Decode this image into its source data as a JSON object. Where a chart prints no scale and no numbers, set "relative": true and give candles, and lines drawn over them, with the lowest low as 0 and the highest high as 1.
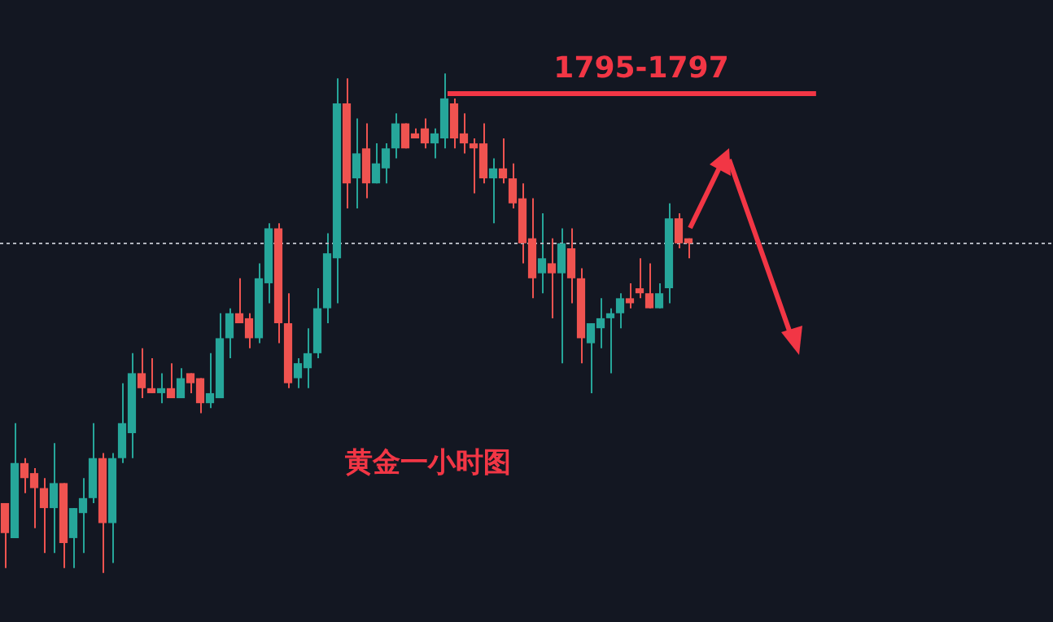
{
  "chart_data": {
    "type": "candlestick",
    "relative": true,
    "categories": [
      null,
      null,
      null,
      null,
      null,
      null,
      null,
      null,
      null,
      null,
      null,
      null,
      null,
      null,
      null,
      null,
      null,
      null,
      null,
      null,
      null,
      null,
      null,
      null,
      null,
      null,
      null,
      null,
      null,
      null,
      null,
      null,
      null,
      null,
      null,
      null,
      null,
      null,
      null,
      null,
      null,
      null,
      null,
      null,
      null,
      null,
      null,
      null,
      null,
      null,
      null,
      null,
      null,
      null,
      null,
      null,
      null,
      null,
      null,
      null,
      null,
      null,
      null,
      null,
      null,
      null,
      null,
      null,
      null,
      null,
      null
    ],
    "ohlc": [
      [
        0.14,
        0.14,
        0.01,
        0.08
      ],
      [
        0.07,
        0.3,
        0.07,
        0.22
      ],
      [
        0.22,
        0.23,
        0.16,
        0.19
      ],
      [
        0.2,
        0.21,
        0.09,
        0.17
      ],
      [
        0.17,
        0.19,
        0.04,
        0.13
      ],
      [
        0.13,
        0.26,
        0.04,
        0.18
      ],
      [
        0.18,
        0.18,
        0.01,
        0.06
      ],
      [
        0.07,
        0.13,
        0.01,
        0.13
      ],
      [
        0.12,
        0.19,
        0.04,
        0.15
      ],
      [
        0.15,
        0.3,
        0.14,
        0.23
      ],
      [
        0.23,
        0.24,
        0,
        0.1
      ],
      [
        0.1,
        0.24,
        0.02,
        0.23
      ],
      [
        0.23,
        0.38,
        0.22,
        0.3
      ],
      [
        0.28,
        0.44,
        0.23,
        0.4
      ],
      [
        0.4,
        0.45,
        0.35,
        0.37
      ],
      [
        0.37,
        0.43,
        0.36,
        0.36
      ],
      [
        0.36,
        0.4,
        0.34,
        0.37
      ],
      [
        0.37,
        0.42,
        0.35,
        0.35
      ],
      [
        0.35,
        0.41,
        0.35,
        0.39
      ],
      [
        0.4,
        0.4,
        0.36,
        0.38
      ],
      [
        0.39,
        0.39,
        0.32,
        0.34
      ],
      [
        0.34,
        0.44,
        0.33,
        0.36
      ],
      [
        0.35,
        0.52,
        0.35,
        0.47
      ],
      [
        0.47,
        0.53,
        0.43,
        0.52
      ],
      [
        0.52,
        0.59,
        0.5,
        0.5
      ],
      [
        0.51,
        0.52,
        0.45,
        0.47
      ],
      [
        0.47,
        0.62,
        0.46,
        0.59
      ],
      [
        0.58,
        0.7,
        0.54,
        0.69
      ],
      [
        0.69,
        0.7,
        0.46,
        0.5
      ],
      [
        0.5,
        0.56,
        0.37,
        0.38
      ],
      [
        0.39,
        0.43,
        0.37,
        0.42
      ],
      [
        0.41,
        0.49,
        0.37,
        0.44
      ],
      [
        0.44,
        0.57,
        0.43,
        0.53
      ],
      [
        0.53,
        0.68,
        0.5,
        0.64
      ],
      [
        0.63,
        0.99,
        0.54,
        0.94
      ],
      [
        0.94,
        0.99,
        0.73,
        0.78
      ],
      [
        0.79,
        0.91,
        0.73,
        0.84
      ],
      [
        0.85,
        0.9,
        0.75,
        0.78
      ],
      [
        0.78,
        0.86,
        0.78,
        0.82
      ],
      [
        0.81,
        0.86,
        0.78,
        0.85
      ],
      [
        0.85,
        0.92,
        0.83,
        0.9
      ],
      [
        0.9,
        0.9,
        0.85,
        0.85
      ],
      [
        0.88,
        0.89,
        0.87,
        0.87
      ],
      [
        0.89,
        0.91,
        0.85,
        0.86
      ],
      [
        0.86,
        0.89,
        0.83,
        0.88
      ],
      [
        0.87,
        1,
        0.85,
        0.95
      ],
      [
        0.94,
        0.95,
        0.85,
        0.87
      ],
      [
        0.88,
        0.92,
        0.84,
        0.86
      ],
      [
        0.86,
        0.87,
        0.76,
        0.85
      ],
      [
        0.86,
        0.9,
        0.78,
        0.79
      ],
      [
        0.79,
        0.83,
        0.7,
        0.81
      ],
      [
        0.81,
        0.87,
        0.78,
        0.79
      ],
      [
        0.79,
        0.82,
        0.73,
        0.74
      ],
      [
        0.75,
        0.78,
        0.62,
        0.66
      ],
      [
        0.67,
        0.75,
        0.55,
        0.59
      ],
      [
        0.6,
        0.72,
        0.56,
        0.63
      ],
      [
        0.62,
        0.67,
        0.51,
        0.6
      ],
      [
        0.6,
        0.69,
        0.42,
        0.66
      ],
      [
        0.65,
        0.69,
        0.54,
        0.59
      ],
      [
        0.59,
        0.61,
        0.42,
        0.47
      ],
      [
        0.46,
        0.5,
        0.36,
        0.5
      ],
      [
        0.49,
        0.55,
        0.45,
        0.51
      ],
      [
        0.51,
        0.53,
        0.4,
        0.52
      ],
      [
        0.52,
        0.56,
        0.49,
        0.55
      ],
      [
        0.55,
        0.58,
        0.53,
        0.54
      ],
      [
        0.57,
        0.63,
        0.55,
        0.56
      ],
      [
        0.56,
        0.62,
        0.53,
        0.53
      ],
      [
        0.53,
        0.58,
        0.53,
        0.56
      ],
      [
        0.57,
        0.74,
        0.54,
        0.71
      ],
      [
        0.71,
        0.72,
        0.65,
        0.66
      ],
      [
        0.67,
        0.67,
        0.63,
        0.66
      ]
    ],
    "colors": [
      "#ef5350",
      "#26a69a",
      "#ef5350",
      "#ef5350",
      "#ef5350",
      "#26a69a",
      "#ef5350",
      "#26a69a",
      "#26a69a",
      "#26a69a",
      "#ef5350",
      "#26a69a",
      "#26a69a",
      "#26a69a",
      "#ef5350",
      "#ef5350",
      "#26a69a",
      "#ef5350",
      "#26a69a",
      "#ef5350",
      "#ef5350",
      "#26a69a",
      "#26a69a",
      "#26a69a",
      "#ef5350",
      "#ef5350",
      "#26a69a",
      "#26a69a",
      "#ef5350",
      "#ef5350",
      "#26a69a",
      "#26a69a",
      "#26a69a",
      "#26a69a",
      "#26a69a",
      "#ef5350",
      "#26a69a",
      "#ef5350",
      "#26a69a",
      "#26a69a",
      "#26a69a",
      "#ef5350",
      "#ef5350",
      "#ef5350",
      "#26a69a",
      "#26a69a",
      "#ef5350",
      "#ef5350",
      "#ef5350",
      "#ef5350",
      "#26a69a",
      "#ef5350",
      "#ef5350",
      "#ef5350",
      "#ef5350",
      "#26a69a",
      "#ef5350",
      "#26a69a",
      "#ef5350",
      "#ef5350",
      "#26a69a",
      "#26a69a",
      "#26a69a",
      "#26a69a",
      "#ef5350",
      "#ef5350",
      "#ef5350",
      "#26a69a",
      "#26a69a",
      "#ef5350",
      "#ef5350"
    ],
    "ref_lines": [
      {
        "axis": "y",
        "value": 0.66,
        "color": "#b2b5be",
        "line_style": "dotted"
      },
      {
        "axis": "y",
        "value": 0.96,
        "color": "#f23645",
        "line_style": "solid"
      }
    ],
    "annotations": [
      "1795-1797",
      "黄金一小时图"
    ]
  }
}
